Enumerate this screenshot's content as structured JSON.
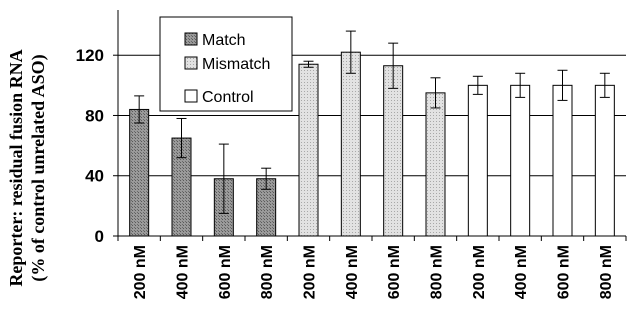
{
  "chart_data": {
    "type": "bar",
    "ylabel_lines": [
      "Reporter: residual fusion RNA",
      "(% of control unrelated ASO)"
    ],
    "ylim": [
      0,
      150
    ],
    "yticks": [
      0,
      40,
      80,
      120
    ],
    "grid": true,
    "legend_position": "top-left",
    "categories": [
      "200 nM",
      "400 nM",
      "600 nM",
      "800 nM",
      "200 nM",
      "400 nM",
      "600 nM",
      "800 nM",
      "200 nM",
      "400 nM",
      "600 nM",
      "800 nM"
    ],
    "series": [
      {
        "name": "Match",
        "color": "#8c8c8c",
        "values": [
          84,
          65,
          38,
          38,
          null,
          null,
          null,
          null,
          null,
          null,
          null,
          null
        ],
        "errors": [
          9,
          13,
          23,
          7,
          null,
          null,
          null,
          null,
          null,
          null,
          null,
          null
        ]
      },
      {
        "name": "Mismatch",
        "color": "#d9d9d9",
        "values": [
          null,
          null,
          null,
          null,
          114,
          122,
          113,
          95,
          null,
          null,
          null,
          null
        ],
        "errors": [
          null,
          null,
          null,
          null,
          2,
          14,
          15,
          10,
          null,
          null,
          null,
          null
        ]
      },
      {
        "name": "Control",
        "color": "#ffffff",
        "values": [
          null,
          null,
          null,
          null,
          null,
          null,
          null,
          null,
          100,
          100,
          100,
          100
        ],
        "errors": [
          null,
          null,
          null,
          null,
          null,
          null,
          null,
          null,
          6,
          8,
          10,
          8
        ]
      }
    ]
  }
}
